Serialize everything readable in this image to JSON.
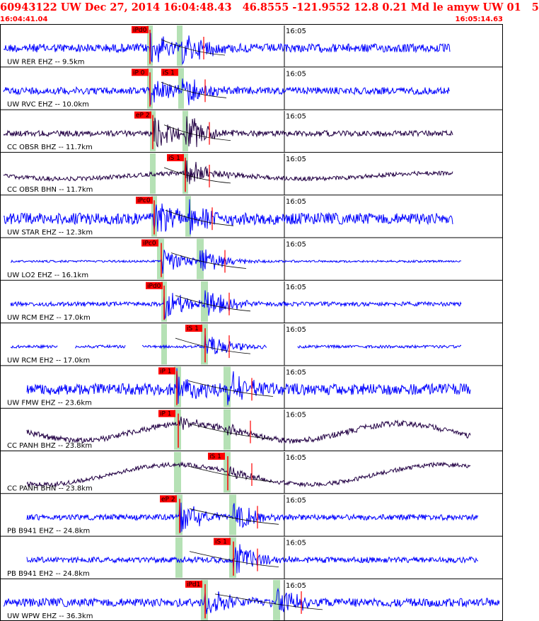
{
  "header": {
    "title": "60943122 UW Dec 27, 2014 16:04:48.43   46.8555 -121.9552 12.8 0.21 Md le amyw UW 01   5",
    "start_time": "16:04:41.04",
    "end_time": "16:05:14.63"
  },
  "colors": {
    "header": "#ff0000",
    "ehz_trace": "#0000ff",
    "bh_trace": "#220044",
    "pick": "#ff0000",
    "window": "#a8dca8",
    "frame": "#000000"
  },
  "minute_label": "16:05",
  "traces": [
    {
      "label": "UW RER EHZ -- 9.5km",
      "kind": "ehz",
      "pick": "iPd0",
      "pick2": ""
    },
    {
      "label": "UW RVC EHZ -- 10.0km",
      "kind": "ehz",
      "pick": "iP 0",
      "pick2": "iS 1"
    },
    {
      "label": "CC OBSR BHZ -- 11.7km",
      "kind": "bh",
      "pick": "eP 2",
      "pick2": ""
    },
    {
      "label": "CC OBSR BHN -- 11.7km",
      "kind": "bh",
      "pick": "iS 1",
      "pick2": ""
    },
    {
      "label": "UW STAR EHZ -- 12.3km",
      "kind": "ehz",
      "pick": "iPc0",
      "pick2": ""
    },
    {
      "label": "UW LO2 EHZ -- 16.1km",
      "kind": "ehz",
      "pick": "iPc0",
      "pick2": ""
    },
    {
      "label": "UW RCM EHZ -- 17.0km",
      "kind": "ehz",
      "pick": "iPd0",
      "pick2": ""
    },
    {
      "label": "UW RCM EH2 -- 17.0km",
      "kind": "ehz",
      "pick": "iS 1",
      "pick2": ""
    },
    {
      "label": "UW FMW EHZ -- 23.6km",
      "kind": "ehz",
      "pick": "iP 1",
      "pick2": ""
    },
    {
      "label": "CC PANH BHZ -- 23.8km",
      "kind": "bh",
      "pick": "iP 1",
      "pick2": ""
    },
    {
      "label": "CC PANH BHN -- 23.8km",
      "kind": "bh",
      "pick": "iS 1",
      "pick2": ""
    },
    {
      "label": "PB B941 EHZ -- 24.8km",
      "kind": "ehz",
      "pick": "eP 2",
      "pick2": ""
    },
    {
      "label": "PB B941 EH2 -- 24.8km",
      "kind": "ehz",
      "pick": "iS 1",
      "pick2": ""
    },
    {
      "label": "UW WPW EHZ -- 36.3km",
      "kind": "ehz",
      "pick": "iPd1",
      "pick2": ""
    }
  ]
}
